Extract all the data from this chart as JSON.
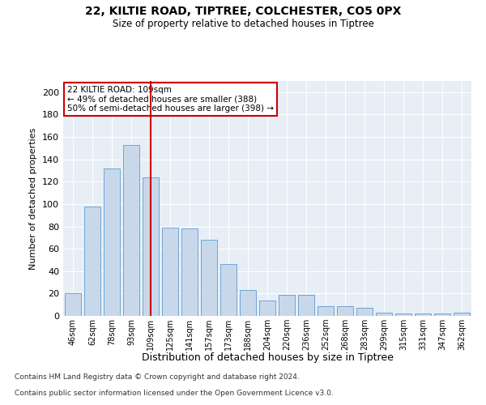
{
  "title1": "22, KILTIE ROAD, TIPTREE, COLCHESTER, CO5 0PX",
  "title2": "Size of property relative to detached houses in Tiptree",
  "xlabel": "Distribution of detached houses by size in Tiptree",
  "ylabel": "Number of detached properties",
  "categories": [
    "46sqm",
    "62sqm",
    "78sqm",
    "93sqm",
    "109sqm",
    "125sqm",
    "141sqm",
    "157sqm",
    "173sqm",
    "188sqm",
    "204sqm",
    "220sqm",
    "236sqm",
    "252sqm",
    "268sqm",
    "283sqm",
    "299sqm",
    "315sqm",
    "331sqm",
    "347sqm",
    "362sqm"
  ],
  "values": [
    20,
    98,
    132,
    153,
    124,
    79,
    78,
    68,
    46,
    23,
    14,
    19,
    19,
    9,
    9,
    7,
    3,
    2,
    2,
    2,
    3
  ],
  "bar_color": "#c8d8ea",
  "bar_edge_color": "#5b9bd5",
  "vline_x_index": 4,
  "vline_color": "#cc0000",
  "annotation_text": "22 KILTIE ROAD: 109sqm\n← 49% of detached houses are smaller (388)\n50% of semi-detached houses are larger (398) →",
  "annotation_box_color": "#ffffff",
  "annotation_box_edge": "#cc0000",
  "ylim": [
    0,
    210
  ],
  "yticks": [
    0,
    20,
    40,
    60,
    80,
    100,
    120,
    140,
    160,
    180,
    200
  ],
  "footer1": "Contains HM Land Registry data © Crown copyright and database right 2024.",
  "footer2": "Contains public sector information licensed under the Open Government Licence v3.0.",
  "bg_color": "#ffffff",
  "plot_bg_color": "#e8eef5"
}
